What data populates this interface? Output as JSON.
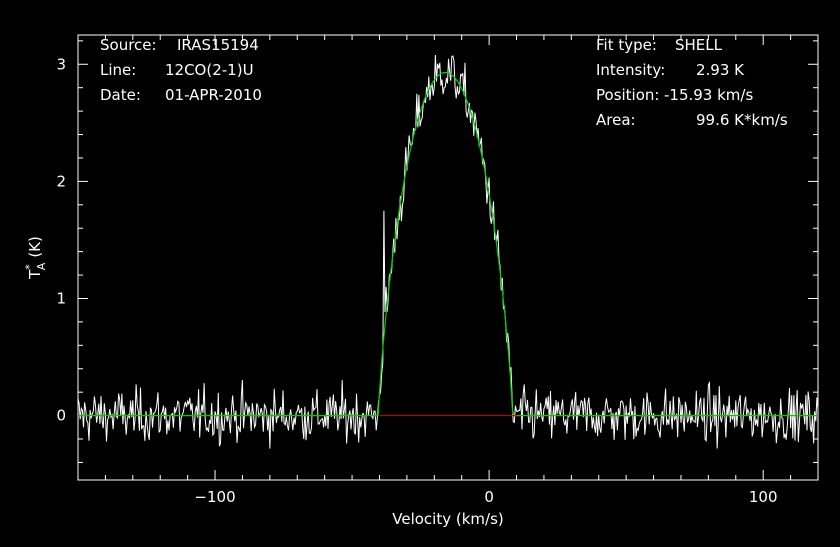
{
  "chart_data": {
    "type": "line",
    "title": "",
    "xlabel": "Velocity (km/s)",
    "ylabel": {
      "base": "T",
      "sup": "*",
      "sub": "A",
      "unit": "(K)"
    },
    "xlim": [
      -150,
      120
    ],
    "ylim": [
      -0.55,
      3.25
    ],
    "grid": false,
    "xticks_major": [
      -100,
      0,
      100
    ],
    "xticks_minor_step": 10,
    "yticks_major": [
      0,
      1,
      2,
      3
    ],
    "yticks_minor_step": 0.2,
    "info_left": [
      {
        "label": "Source:",
        "value": "IRAS15194"
      },
      {
        "label": "Line:",
        "value": "12CO(2-1)U"
      },
      {
        "label": "Date:",
        "value": "01-APR-2010"
      }
    ],
    "info_right": [
      {
        "label": "Fit type:",
        "value": "SHELL"
      },
      {
        "label": "Intensity:",
        "value": "2.93 K"
      },
      {
        "label": "Position:",
        "value": "-15.93 km/s"
      },
      {
        "label": "Area:",
        "value": "99.6 K*km/s"
      }
    ],
    "fit": {
      "type": "SHELL",
      "intensity": 2.93,
      "position": -15.93,
      "area": 99.6,
      "halfwidth": 24.5,
      "color": "#00cc00"
    },
    "baseline": {
      "x": [
        -40,
        10
      ],
      "y": 0,
      "color": "#cc0000"
    },
    "spectrum": {
      "color": "#ffffff",
      "channel_width": 0.4,
      "noise_rms": 0.11,
      "spike": {
        "x": -38.5,
        "y": 1.75
      }
    }
  }
}
